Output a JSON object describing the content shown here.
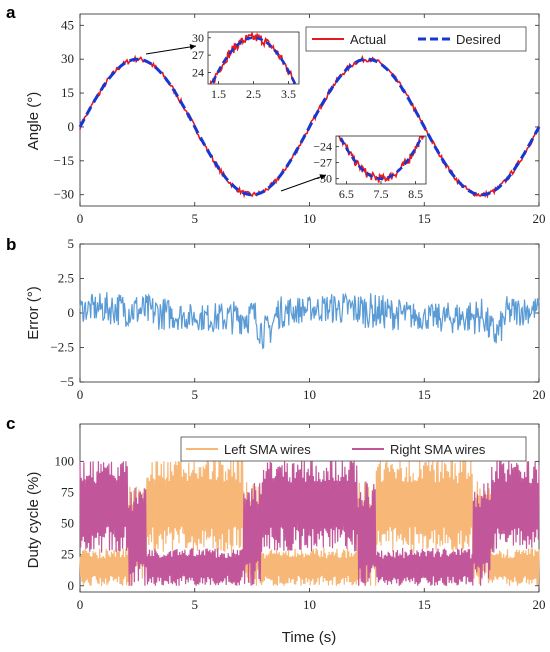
{
  "colors": {
    "actual": "#e8191c",
    "desired": "#1537d4",
    "error": "#5b9bd5",
    "left_sma": "#f7b777",
    "right_sma": "#c2569a",
    "axis": "#262626"
  },
  "panels": {
    "a": "a",
    "b": "b",
    "c": "c"
  },
  "chart_data": [
    {
      "type": "line",
      "panel": "a",
      "ylabel": "Angle (°)",
      "xlim": [
        0,
        20
      ],
      "ylim": [
        -35,
        50
      ],
      "xticks": [
        "0",
        "5",
        "10",
        "15",
        "20"
      ],
      "yticks": [
        "-30",
        "-15",
        "0",
        "15",
        "30",
        "45"
      ],
      "series": [
        {
          "name": "Actual",
          "function": "30*sin(2*pi*x/10) + noise(±1)",
          "samples": 201
        },
        {
          "name": "Desired",
          "function": "30*sin(2*pi*x/10)",
          "samples": 201
        }
      ],
      "inset_1": {
        "xlim": [
          1.2,
          3.8
        ],
        "ylim": [
          22,
          31
        ],
        "xticks": [
          "1.5",
          "2.5",
          "3.5"
        ],
        "yticks": [
          "24",
          "27",
          "30"
        ]
      },
      "inset_2": {
        "xlim": [
          6.2,
          8.8
        ],
        "ylim": [
          -31,
          -22
        ],
        "xticks": [
          "6.5",
          "7.5",
          "8.5"
        ],
        "yticks": [
          "-30",
          "-27",
          "-24"
        ]
      }
    },
    {
      "type": "line",
      "panel": "b",
      "ylabel": "Error (°)",
      "xlim": [
        0,
        20
      ],
      "ylim": [
        -5,
        5
      ],
      "xticks": [
        "0",
        "5",
        "10",
        "15",
        "20"
      ],
      "yticks": [
        "-5",
        "-2.5",
        "0",
        "2.5",
        "5"
      ],
      "series": [
        {
          "function": "error noise ≈ ±1.5 with dips near x=8.3 and x=18.2",
          "samples": 400
        }
      ]
    },
    {
      "type": "line",
      "panel": "c",
      "ylabel": "Duty cycle (%)",
      "xlabel": "Time (s)",
      "xlim": [
        0,
        20
      ],
      "ylim": [
        -5,
        130
      ],
      "xticks": [
        "0",
        "5",
        "10",
        "15",
        "20"
      ],
      "yticks": [
        "0",
        "25",
        "50",
        "75",
        "100"
      ],
      "series": [
        {
          "name": "Left SMA wires",
          "samples": 400
        },
        {
          "name": "Right SMA wires",
          "samples": 400
        }
      ]
    }
  ],
  "legend_a": {
    "actual": "Actual",
    "desired": "Desired"
  },
  "legend_c": {
    "left": "Left SMA wires",
    "right": "Right SMA wires"
  }
}
